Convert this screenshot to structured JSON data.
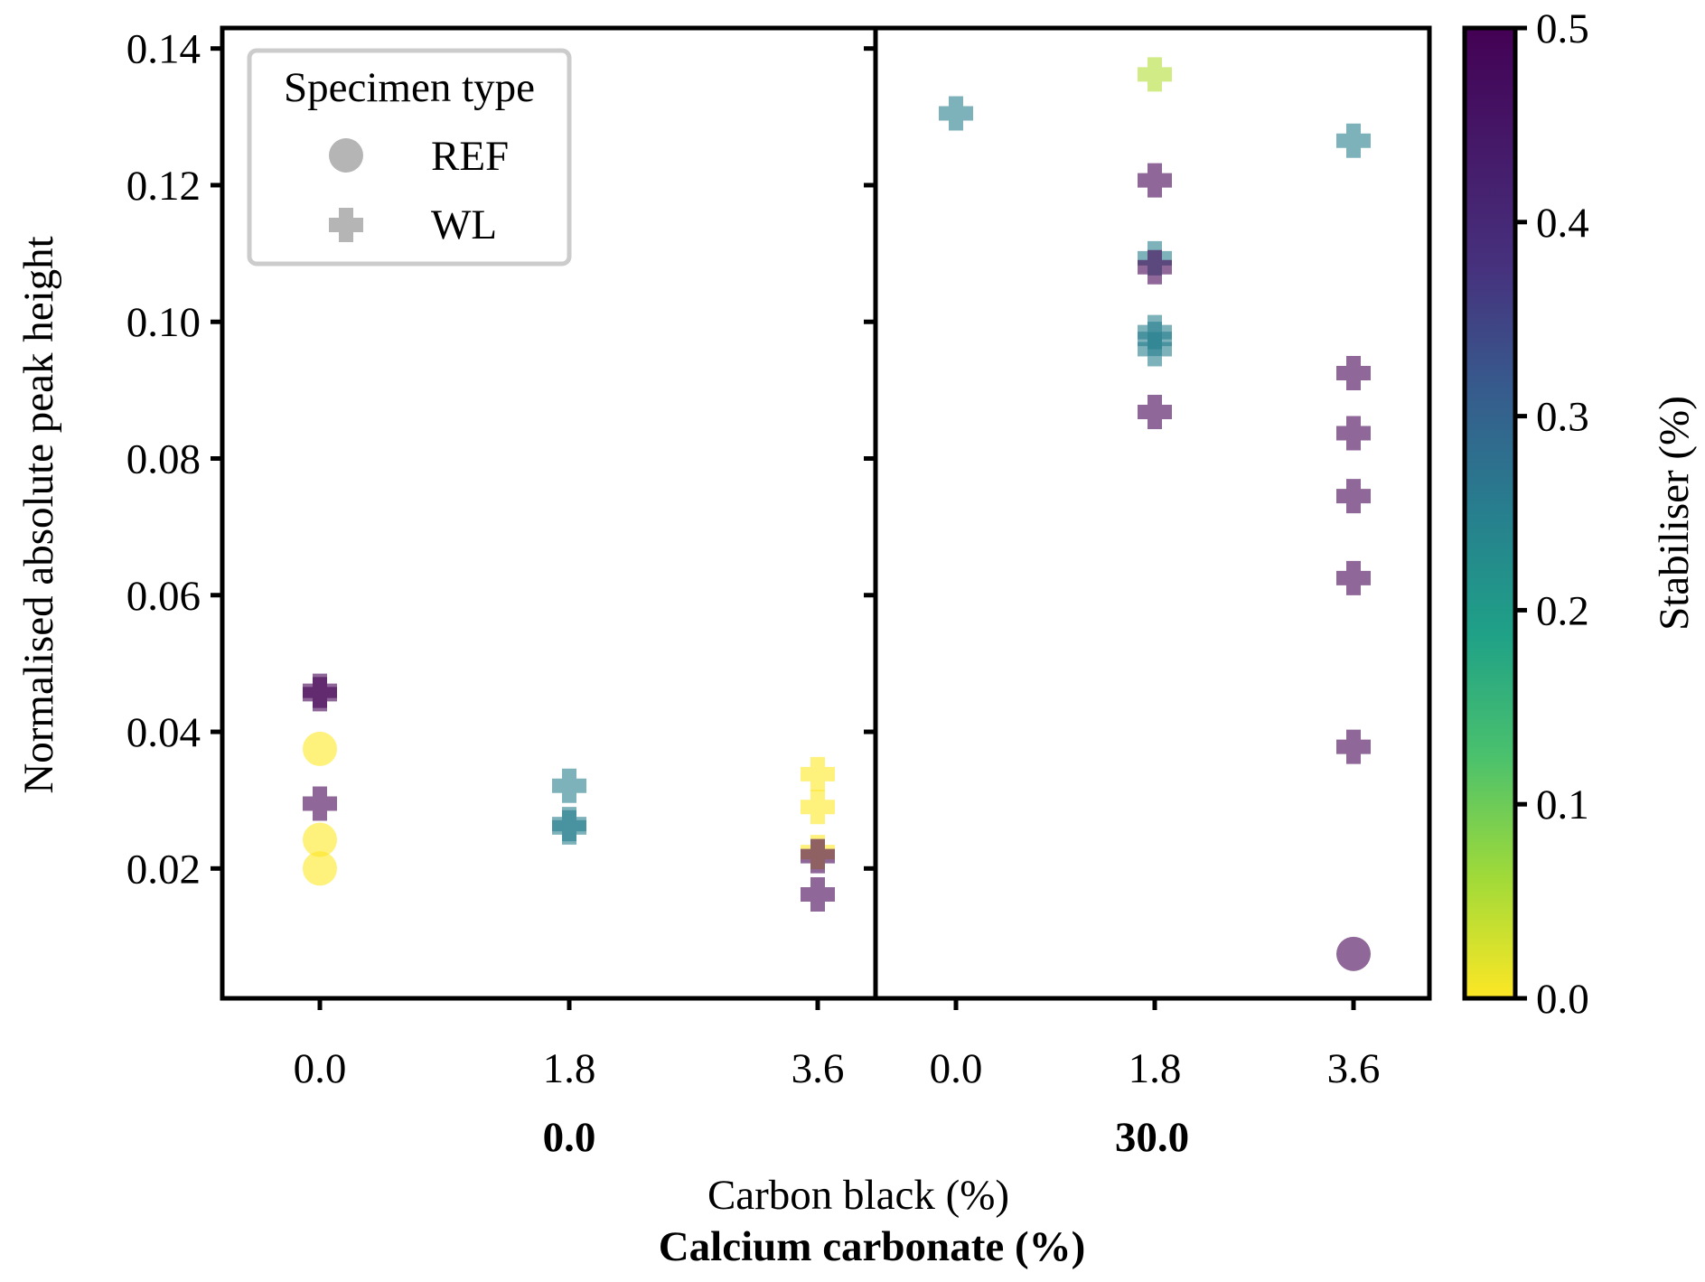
{
  "chart_data": {
    "type": "scatter",
    "ylabel": "Normalised absolute peak height",
    "xlabel": "Carbon black (%)",
    "xlabel_secondary": "Calcium carbonate (%)",
    "ylim": [
      0.001,
      0.143
    ],
    "yticks": [
      0.02,
      0.04,
      0.06,
      0.08,
      0.1,
      0.12,
      0.14
    ],
    "ytick_labels": [
      "0.02",
      "0.04",
      "0.06",
      "0.08",
      "0.10",
      "0.12",
      "0.14"
    ],
    "grid": false,
    "legend": {
      "title": "Specimen type",
      "location": "top-left",
      "entries": [
        {
          "label": "REF",
          "marker": "circle"
        },
        {
          "label": "WL",
          "marker": "plus"
        }
      ]
    },
    "colorbar": {
      "label": "Stabiliser (%)",
      "colormap": "viridis_r",
      "range": [
        0.0,
        0.5
      ],
      "ticks": [
        0.0,
        0.1,
        0.2,
        0.3,
        0.4,
        0.5
      ],
      "tick_labels": [
        "0.0",
        "0.1",
        "0.2",
        "0.3",
        "0.4",
        "0.5"
      ]
    },
    "panels": [
      {
        "group_label": "0.0",
        "categories": [
          "0.0",
          "1.8",
          "3.6"
        ],
        "points": [
          {
            "category": "0.0",
            "y": 0.046,
            "type": "WL",
            "stabiliser": 0.5
          },
          {
            "category": "0.0",
            "y": 0.0455,
            "type": "WL",
            "stabiliser": 0.5
          },
          {
            "category": "0.0",
            "y": 0.0375,
            "type": "REF",
            "stabiliser": 0.0
          },
          {
            "category": "0.0",
            "y": 0.0295,
            "type": "WL",
            "stabiliser": 0.5
          },
          {
            "category": "0.0",
            "y": 0.0242,
            "type": "REF",
            "stabiliser": 0.0
          },
          {
            "category": "0.0",
            "y": 0.02,
            "type": "REF",
            "stabiliser": 0.0
          },
          {
            "category": "1.8",
            "y": 0.0321,
            "type": "WL",
            "stabiliser": 0.25
          },
          {
            "category": "1.8",
            "y": 0.0265,
            "type": "WL",
            "stabiliser": 0.25
          },
          {
            "category": "1.8",
            "y": 0.026,
            "type": "WL",
            "stabiliser": 0.25
          },
          {
            "category": "3.6",
            "y": 0.0338,
            "type": "WL",
            "stabiliser": 0.0
          },
          {
            "category": "3.6",
            "y": 0.029,
            "type": "WL",
            "stabiliser": 0.0
          },
          {
            "category": "3.6",
            "y": 0.0224,
            "type": "WL",
            "stabiliser": 0.0
          },
          {
            "category": "3.6",
            "y": 0.0218,
            "type": "WL",
            "stabiliser": 0.5
          },
          {
            "category": "3.6",
            "y": 0.0162,
            "type": "WL",
            "stabiliser": 0.5
          }
        ]
      },
      {
        "group_label": "30.0",
        "categories": [
          "0.0",
          "1.8",
          "3.6"
        ],
        "points": [
          {
            "category": "0.0",
            "y": 0.1305,
            "type": "WL",
            "stabiliser": 0.25
          },
          {
            "category": "1.8",
            "y": 0.1362,
            "type": "WL",
            "stabiliser": 0.05
          },
          {
            "category": "1.8",
            "y": 0.1207,
            "type": "WL",
            "stabiliser": 0.5
          },
          {
            "category": "1.8",
            "y": 0.1093,
            "type": "WL",
            "stabiliser": 0.25
          },
          {
            "category": "1.8",
            "y": 0.108,
            "type": "WL",
            "stabiliser": 0.5
          },
          {
            "category": "1.8",
            "y": 0.0985,
            "type": "WL",
            "stabiliser": 0.25
          },
          {
            "category": "1.8",
            "y": 0.0975,
            "type": "WL",
            "stabiliser": 0.25
          },
          {
            "category": "1.8",
            "y": 0.096,
            "type": "WL",
            "stabiliser": 0.25
          },
          {
            "category": "1.8",
            "y": 0.0868,
            "type": "WL",
            "stabiliser": 0.5
          },
          {
            "category": "3.6",
            "y": 0.1265,
            "type": "WL",
            "stabiliser": 0.25
          },
          {
            "category": "3.6",
            "y": 0.0925,
            "type": "WL",
            "stabiliser": 0.5
          },
          {
            "category": "3.6",
            "y": 0.0837,
            "type": "WL",
            "stabiliser": 0.5
          },
          {
            "category": "3.6",
            "y": 0.0745,
            "type": "WL",
            "stabiliser": 0.5
          },
          {
            "category": "3.6",
            "y": 0.0625,
            "type": "WL",
            "stabiliser": 0.5
          },
          {
            "category": "3.6",
            "y": 0.0378,
            "type": "WL",
            "stabiliser": 0.5
          },
          {
            "category": "3.6",
            "y": 0.0075,
            "type": "REF",
            "stabiliser": 0.5
          }
        ]
      }
    ]
  }
}
